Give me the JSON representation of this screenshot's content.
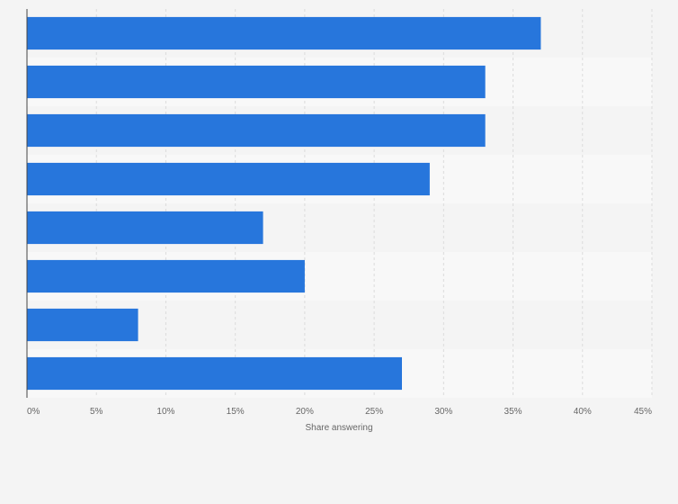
{
  "chart_data": {
    "type": "bar",
    "orientation": "horizontal",
    "categories": [
      "",
      "",
      "",
      "",
      "",
      "",
      "",
      ""
    ],
    "values": [
      37,
      33,
      33,
      29,
      17,
      20,
      8,
      27
    ],
    "xlabel": "Share answering",
    "xlim": [
      0,
      45
    ],
    "x_ticks": [
      0,
      5,
      10,
      15,
      20,
      25,
      30,
      35,
      40,
      45
    ],
    "tick_labels": [
      "0%",
      "5%",
      "10%",
      "15%",
      "20%",
      "25%",
      "30%",
      "35%",
      "40%",
      "45%"
    ],
    "grid": true,
    "bar_color": "#2776dc",
    "background_color": "#f4f4f4",
    "band_colors": [
      "#f4f4f4",
      "#f8f8f8"
    ]
  }
}
